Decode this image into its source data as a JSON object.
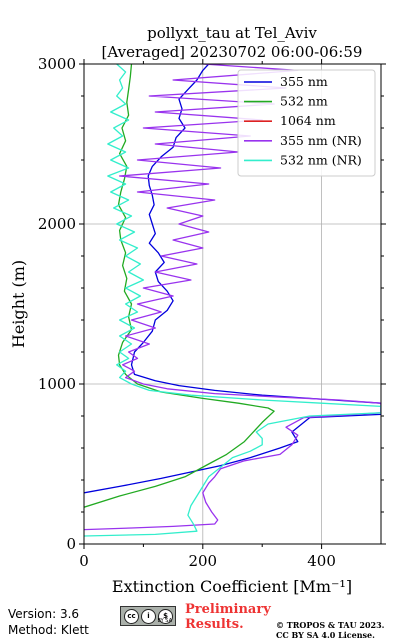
{
  "chart_data": {
    "type": "line",
    "title": "pollyxt_tau at Tel_Aviv",
    "subtitle": "[Averaged] 20230702 06:00-06:59",
    "xlabel": "Extinction Coefficient [Mm⁻¹]",
    "ylabel": "Height (m)",
    "xlim": [
      0,
      500
    ],
    "ylim": [
      0,
      3000
    ],
    "xticks": [
      0,
      200,
      400
    ],
    "yticks": [
      0,
      1000,
      2000,
      3000
    ],
    "grid": true,
    "legend_position": "top-right",
    "series": [
      {
        "name": "355 nm",
        "color": "#0000dd",
        "points": [
          [
            0,
            320
          ],
          [
            60,
            360
          ],
          [
            130,
            410
          ],
          [
            180,
            450
          ],
          [
            230,
            490
          ],
          [
            280,
            540
          ],
          [
            330,
            600
          ],
          [
            360,
            640
          ],
          [
            350,
            700
          ],
          [
            380,
            790
          ],
          [
            500,
            810
          ],
          [
            500,
            880
          ],
          [
            420,
            900
          ],
          [
            300,
            930
          ],
          [
            220,
            960
          ],
          [
            160,
            990
          ],
          [
            120,
            1020
          ],
          [
            85,
            1060
          ],
          [
            80,
            1120
          ],
          [
            85,
            1200
          ],
          [
            100,
            1260
          ],
          [
            115,
            1330
          ],
          [
            120,
            1400
          ],
          [
            140,
            1460
          ],
          [
            150,
            1520
          ],
          [
            140,
            1580
          ],
          [
            125,
            1640
          ],
          [
            120,
            1700
          ],
          [
            135,
            1760
          ],
          [
            125,
            1820
          ],
          [
            110,
            1880
          ],
          [
            120,
            1940
          ],
          [
            115,
            2000
          ],
          [
            110,
            2060
          ],
          [
            118,
            2120
          ],
          [
            115,
            2180
          ],
          [
            110,
            2240
          ],
          [
            108,
            2300
          ],
          [
            115,
            2360
          ],
          [
            130,
            2420
          ],
          [
            150,
            2480
          ],
          [
            155,
            2540
          ],
          [
            170,
            2600
          ],
          [
            160,
            2660
          ],
          [
            165,
            2720
          ],
          [
            160,
            2780
          ],
          [
            175,
            2840
          ],
          [
            190,
            2900
          ],
          [
            200,
            2960
          ],
          [
            210,
            3000
          ]
        ]
      },
      {
        "name": "532 nm",
        "color": "#22aa22",
        "points": [
          [
            0,
            230
          ],
          [
            60,
            300
          ],
          [
            120,
            360
          ],
          [
            170,
            420
          ],
          [
            210,
            500
          ],
          [
            240,
            560
          ],
          [
            270,
            640
          ],
          [
            300,
            760
          ],
          [
            320,
            830
          ],
          [
            310,
            850
          ],
          [
            260,
            880
          ],
          [
            200,
            910
          ],
          [
            130,
            950
          ],
          [
            90,
            1000
          ],
          [
            70,
            1060
          ],
          [
            60,
            1120
          ],
          [
            58,
            1180
          ],
          [
            65,
            1260
          ],
          [
            80,
            1340
          ],
          [
            75,
            1420
          ],
          [
            80,
            1500
          ],
          [
            68,
            1580
          ],
          [
            72,
            1660
          ],
          [
            65,
            1740
          ],
          [
            70,
            1820
          ],
          [
            62,
            1900
          ],
          [
            60,
            1960
          ],
          [
            70,
            2040
          ],
          [
            58,
            2120
          ],
          [
            62,
            2200
          ],
          [
            68,
            2280
          ],
          [
            72,
            2360
          ],
          [
            60,
            2440
          ],
          [
            70,
            2520
          ],
          [
            64,
            2600
          ],
          [
            75,
            2680
          ],
          [
            72,
            2760
          ],
          [
            75,
            2840
          ],
          [
            78,
            2920
          ],
          [
            80,
            3000
          ]
        ]
      },
      {
        "name": "1064 nm",
        "color": "#dd2222",
        "points": []
      },
      {
        "name": "355 nm (NR)",
        "color": "#9933ee",
        "points": [
          [
            0,
            90
          ],
          [
            80,
            100
          ],
          [
            150,
            110
          ],
          [
            220,
            125
          ],
          [
            225,
            150
          ],
          [
            215,
            200
          ],
          [
            205,
            260
          ],
          [
            200,
            320
          ],
          [
            210,
            380
          ],
          [
            220,
            420
          ],
          [
            230,
            470
          ],
          [
            270,
            520
          ],
          [
            330,
            560
          ],
          [
            350,
            620
          ],
          [
            360,
            680
          ],
          [
            340,
            730
          ],
          [
            370,
            790
          ],
          [
            500,
            820
          ],
          [
            500,
            880
          ],
          [
            430,
            900
          ],
          [
            320,
            920
          ],
          [
            220,
            940
          ],
          [
            140,
            970
          ],
          [
            100,
            1000
          ],
          [
            70,
            1040
          ],
          [
            85,
            1080
          ],
          [
            65,
            1120
          ],
          [
            90,
            1160
          ],
          [
            75,
            1200
          ],
          [
            110,
            1250
          ],
          [
            70,
            1300
          ],
          [
            120,
            1350
          ],
          [
            80,
            1400
          ],
          [
            130,
            1450
          ],
          [
            90,
            1500
          ],
          [
            150,
            1550
          ],
          [
            100,
            1600
          ],
          [
            180,
            1650
          ],
          [
            120,
            1700
          ],
          [
            190,
            1750
          ],
          [
            130,
            1800
          ],
          [
            200,
            1850
          ],
          [
            150,
            1900
          ],
          [
            210,
            1950
          ],
          [
            160,
            2000
          ],
          [
            200,
            2050
          ],
          [
            140,
            2100
          ],
          [
            220,
            2150
          ],
          [
            90,
            2200
          ],
          [
            210,
            2250
          ],
          [
            60,
            2300
          ],
          [
            230,
            2350
          ],
          [
            90,
            2400
          ],
          [
            260,
            2450
          ],
          [
            120,
            2500
          ],
          [
            280,
            2550
          ],
          [
            100,
            2600
          ],
          [
            300,
            2650
          ],
          [
            120,
            2700
          ],
          [
            320,
            2750
          ],
          [
            110,
            2800
          ],
          [
            340,
            2850
          ],
          [
            150,
            2900
          ],
          [
            360,
            2960
          ],
          [
            200,
            3000
          ]
        ]
      },
      {
        "name": "532 nm (NR)",
        "color": "#33eecc",
        "points": [
          [
            0,
            50
          ],
          [
            120,
            60
          ],
          [
            190,
            80
          ],
          [
            185,
            120
          ],
          [
            175,
            180
          ],
          [
            180,
            240
          ],
          [
            190,
            300
          ],
          [
            200,
            360
          ],
          [
            210,
            420
          ],
          [
            230,
            480
          ],
          [
            250,
            540
          ],
          [
            280,
            580
          ],
          [
            300,
            620
          ],
          [
            300,
            660
          ],
          [
            290,
            700
          ],
          [
            310,
            750
          ],
          [
            380,
            800
          ],
          [
            500,
            820
          ],
          [
            500,
            860
          ],
          [
            400,
            880
          ],
          [
            300,
            900
          ],
          [
            180,
            930
          ],
          [
            110,
            960
          ],
          [
            80,
            1000
          ],
          [
            60,
            1040
          ],
          [
            70,
            1080
          ],
          [
            55,
            1120
          ],
          [
            75,
            1160
          ],
          [
            60,
            1200
          ],
          [
            80,
            1250
          ],
          [
            60,
            1300
          ],
          [
            85,
            1350
          ],
          [
            60,
            1400
          ],
          [
            90,
            1450
          ],
          [
            70,
            1500
          ],
          [
            95,
            1550
          ],
          [
            70,
            1600
          ],
          [
            100,
            1650
          ],
          [
            75,
            1700
          ],
          [
            95,
            1750
          ],
          [
            70,
            1800
          ],
          [
            90,
            1850
          ],
          [
            60,
            1900
          ],
          [
            85,
            1950
          ],
          [
            55,
            2000
          ],
          [
            80,
            2050
          ],
          [
            50,
            2100
          ],
          [
            75,
            2150
          ],
          [
            45,
            2200
          ],
          [
            70,
            2250
          ],
          [
            40,
            2300
          ],
          [
            75,
            2350
          ],
          [
            45,
            2400
          ],
          [
            70,
            2450
          ],
          [
            40,
            2500
          ],
          [
            65,
            2550
          ],
          [
            50,
            2600
          ],
          [
            75,
            2650
          ],
          [
            45,
            2700
          ],
          [
            70,
            2750
          ],
          [
            55,
            2800
          ],
          [
            65,
            2850
          ],
          [
            60,
            2900
          ],
          [
            70,
            2950
          ],
          [
            55,
            3000
          ]
        ]
      }
    ]
  },
  "footer": {
    "version": "Version: 3.6",
    "method": "Method: Klett",
    "license_badge": [
      "cc",
      "i",
      "$"
    ],
    "license_badge_text": "BY SA",
    "preliminary_line1": "Preliminary",
    "preliminary_line2": "Results.",
    "copyright_line1": "© TROPOS & TAU 2023.",
    "copyright_line2": "CC BY SA 4.0 License."
  }
}
